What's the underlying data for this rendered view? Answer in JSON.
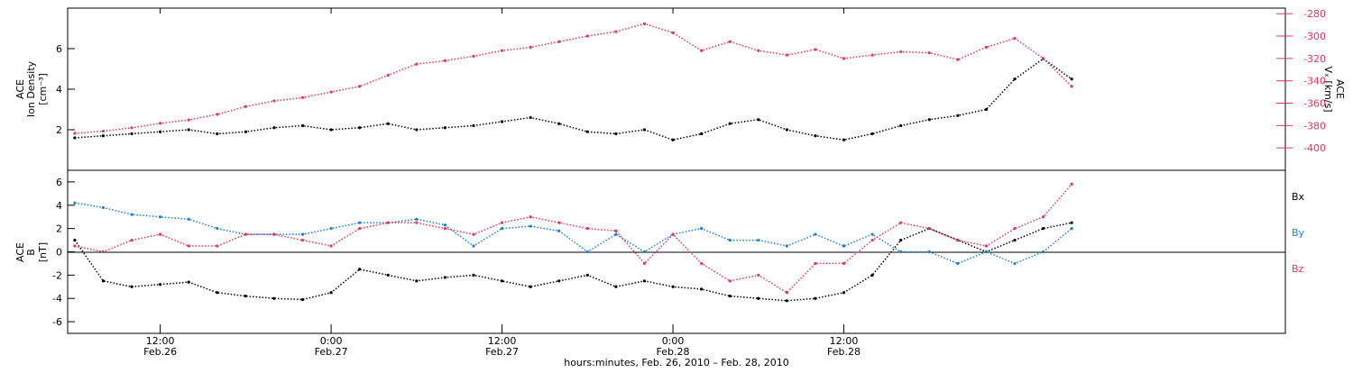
{
  "colors": {
    "black": "#000000",
    "pink": "#e2365f",
    "blue": "#1a7fd4"
  },
  "chart_data": [
    {
      "type": "scatter",
      "panel": "top",
      "ylabel_left": [
        "ACE",
        "Ion Density",
        "[cm⁻³]"
      ],
      "ylabel_right": [
        "ACE",
        "Vₓ [km/s]"
      ],
      "ylim_left": [
        0,
        8
      ],
      "left_ticks": [
        "2",
        "4",
        "6"
      ],
      "ylim_right": [
        -420,
        -275
      ],
      "right_ticks": [
        "-280",
        "-300",
        "-320",
        "-340",
        "-360",
        "-380",
        "-400"
      ],
      "series": [
        {
          "axis": "left",
          "color": "black",
          "x": [
            6,
            8,
            10,
            12,
            14,
            16,
            18,
            20,
            22,
            24,
            26,
            28,
            30,
            32,
            34,
            36,
            38,
            40,
            42,
            44,
            46,
            48,
            50,
            52,
            54,
            56,
            58,
            60,
            62,
            64,
            66,
            68,
            70,
            72,
            74,
            76
          ],
          "values": [
            1.6,
            1.7,
            1.8,
            1.9,
            2.0,
            1.8,
            1.9,
            2.1,
            2.2,
            2.0,
            2.1,
            2.3,
            2.0,
            2.1,
            2.2,
            2.4,
            2.6,
            2.3,
            1.9,
            1.8,
            2.0,
            1.5,
            1.8,
            2.3,
            2.5,
            2.0,
            1.7,
            1.5,
            1.8,
            2.2,
            2.5,
            2.7,
            3.0,
            4.5,
            5.5,
            4.5
          ]
        },
        {
          "axis": "right",
          "color": "pink",
          "x": [
            6,
            8,
            10,
            12,
            14,
            16,
            18,
            20,
            22,
            24,
            26,
            28,
            30,
            32,
            34,
            36,
            38,
            40,
            42,
            44,
            46,
            48,
            50,
            52,
            54,
            56,
            58,
            60,
            62,
            64,
            66,
            68,
            70,
            72,
            74,
            76
          ],
          "values": [
            -387,
            -385,
            -382,
            -378,
            -375,
            -370,
            -363,
            -358,
            -355,
            -350,
            -345,
            -335,
            -325,
            -322,
            -318,
            -313,
            -310,
            -305,
            -300,
            -296,
            -289,
            -297,
            -313,
            -305,
            -313,
            -317,
            -312,
            -320,
            -317,
            -314,
            -315,
            -321,
            -310,
            -302,
            -320,
            -345
          ]
        }
      ]
    },
    {
      "type": "scatter",
      "panel": "bottom",
      "ylabel": [
        "ACE",
        "B",
        "[nT]"
      ],
      "ylim": [
        -7,
        7
      ],
      "ticks": [
        "-6",
        "-4",
        "-2",
        "0",
        "2",
        "4",
        "6"
      ],
      "legend": [
        "Bx",
        "By",
        "Bz"
      ],
      "legend_placement": "right",
      "series": [
        {
          "name": "Bx",
          "color": "black",
          "x": [
            6,
            8,
            10,
            12,
            14,
            16,
            18,
            20,
            22,
            24,
            26,
            28,
            30,
            32,
            34,
            36,
            38,
            40,
            42,
            44,
            46,
            48,
            50,
            52,
            54,
            56,
            58,
            60,
            62,
            64,
            66,
            68,
            70,
            72,
            74,
            76
          ],
          "values": [
            1.0,
            -2.5,
            -3.0,
            -2.8,
            -2.6,
            -3.5,
            -3.8,
            -4.0,
            -4.1,
            -3.5,
            -1.5,
            -2.0,
            -2.5,
            -2.2,
            -2.0,
            -2.5,
            -3.0,
            -2.5,
            -2.0,
            -3.0,
            -2.5,
            -3.0,
            -3.2,
            -3.8,
            -4.0,
            -4.2,
            -4.0,
            -3.5,
            -2.0,
            1.0,
            2.0,
            1.0,
            0.0,
            1.0,
            2.0,
            2.5
          ]
        },
        {
          "name": "By",
          "color": "blue",
          "x": [
            6,
            8,
            10,
            12,
            14,
            16,
            18,
            20,
            22,
            24,
            26,
            28,
            30,
            32,
            34,
            36,
            38,
            40,
            42,
            44,
            46,
            48,
            50,
            52,
            54,
            56,
            58,
            60,
            62,
            64,
            66,
            68,
            70,
            72,
            74,
            76
          ],
          "values": [
            4.2,
            3.8,
            3.2,
            3.0,
            2.8,
            2.0,
            1.5,
            1.5,
            1.5,
            2.0,
            2.5,
            2.5,
            2.8,
            2.3,
            0.5,
            2.0,
            2.2,
            1.8,
            0.0,
            1.5,
            0.0,
            1.5,
            2.0,
            1.0,
            1.0,
            0.5,
            1.5,
            0.5,
            1.5,
            0.0,
            0.0,
            -1.0,
            0.0,
            -1.0,
            0.0,
            2.0
          ]
        },
        {
          "name": "Bz",
          "color": "pink",
          "x": [
            6,
            8,
            10,
            12,
            14,
            16,
            18,
            20,
            22,
            24,
            26,
            28,
            30,
            32,
            34,
            36,
            38,
            40,
            42,
            44,
            46,
            48,
            50,
            52,
            54,
            56,
            58,
            60,
            62,
            64,
            66,
            68,
            70,
            72,
            74,
            76
          ],
          "values": [
            0.5,
            0.0,
            1.0,
            1.5,
            0.5,
            0.5,
            1.5,
            1.5,
            1.0,
            0.5,
            2.0,
            2.5,
            2.5,
            2.0,
            1.5,
            2.5,
            3.0,
            2.5,
            2.0,
            1.8,
            -1.0,
            1.5,
            -1.0,
            -2.5,
            -2.0,
            -3.5,
            -1.0,
            -1.0,
            1.0,
            2.5,
            2.0,
            1.0,
            0.5,
            2.0,
            3.0,
            5.8
          ]
        }
      ]
    }
  ],
  "x_axis": {
    "range_hours": [
      5.5,
      91
    ],
    "ticks": [
      {
        "hour": 12,
        "time": "12:00",
        "date": "Feb.26"
      },
      {
        "hour": 24,
        "time": "0:00",
        "date": "Feb.27"
      },
      {
        "hour": 36,
        "time": "12:00",
        "date": "Feb.27"
      },
      {
        "hour": 48,
        "time": "0:00",
        "date": "Feb.28"
      },
      {
        "hour": 60,
        "time": "12:00",
        "date": "Feb.28"
      }
    ],
    "title": "hours:minutes, Feb. 26, 2010 – Feb. 28, 2010"
  }
}
